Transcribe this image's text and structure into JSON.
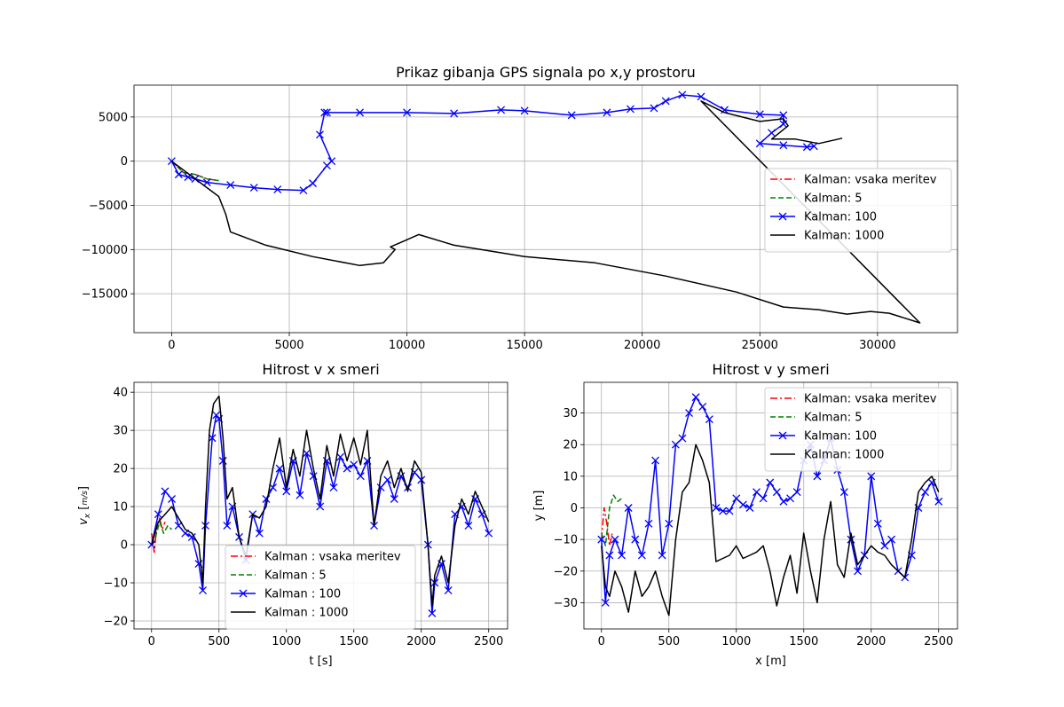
{
  "chart_data": [
    {
      "type": "line",
      "title": "Prikaz gibanja GPS signala po x,y prostoru",
      "xlabel": "",
      "ylabel": "",
      "xlim": [
        -1600,
        33400
      ],
      "ylim": [
        -19400,
        8600
      ],
      "xticks": [
        0,
        5000,
        10000,
        15000,
        20000,
        25000,
        30000
      ],
      "yticks": [
        -15000,
        -10000,
        -5000,
        0,
        5000
      ],
      "grid": true,
      "legend": "right",
      "series": [
        {
          "name": "Kalman: vsaka meritev",
          "color": "#ff0000",
          "style": "dashdot",
          "marker": "none",
          "x": [
            0,
            500,
            1000,
            1500,
            2000
          ],
          "y": [
            0,
            -1300,
            -1500,
            -2000,
            -2200
          ]
        },
        {
          "name": "Kalman: 5",
          "color": "#008000",
          "style": "dashed",
          "marker": "none",
          "x": [
            0,
            500,
            1000,
            1500,
            2000
          ],
          "y": [
            0,
            -1300,
            -1500,
            -2000,
            -2200
          ]
        },
        {
          "name": "Kalman: 100",
          "color": "#0000ff",
          "style": "solid",
          "marker": "x",
          "x": [
            0,
            300,
            700,
            1000,
            1500,
            2500,
            3500,
            4500,
            5600,
            6000,
            6600,
            6800,
            6300,
            6500,
            6600,
            8000,
            10000,
            12000,
            14000,
            15000,
            17000,
            18500,
            19500,
            20500,
            21000,
            21700,
            22500,
            23500,
            25000,
            26000,
            26000,
            25500,
            25000,
            26000,
            27000,
            27300
          ],
          "y": [
            0,
            -1500,
            -1800,
            -2000,
            -2400,
            -2700,
            -3000,
            -3200,
            -3300,
            -2500,
            -500,
            0,
            3000,
            5500,
            5500,
            5500,
            5500,
            5400,
            5800,
            5700,
            5200,
            5500,
            5900,
            6000,
            6800,
            7500,
            7300,
            5800,
            5300,
            5200,
            4200,
            3200,
            2000,
            1800,
            1600,
            1700
          ]
        },
        {
          "name": "Kalman: 1000",
          "color": "#000000",
          "style": "solid",
          "marker": "none",
          "x": [
            0,
            1000,
            2000,
            2300,
            2500,
            4000,
            6000,
            8000,
            9000,
            9500,
            9300,
            9900,
            10500,
            12000,
            15000,
            18000,
            21000,
            24000,
            26000,
            27500,
            28700,
            29700,
            30500,
            31800,
            22500,
            23500,
            25000,
            26000,
            26200,
            25500,
            26500,
            27500,
            28500
          ],
          "y": [
            0,
            -2000,
            -4000,
            -6000,
            -8000,
            -9500,
            -10800,
            -11800,
            -11500,
            -10000,
            -9700,
            -9000,
            -8300,
            -9500,
            -10800,
            -11500,
            -13000,
            -14800,
            -16500,
            -16800,
            -17300,
            -17000,
            -17200,
            -18300,
            6800,
            5500,
            4500,
            4800,
            4000,
            2500,
            2500,
            2000,
            2600
          ]
        }
      ]
    },
    {
      "type": "line",
      "title": "Hitrost v x smeri",
      "xlabel": "t [s]",
      "ylabel": "v_x [m/s]",
      "ylabel_parts": {
        "var": "v",
        "sub": "x",
        "num": "m",
        "den": "s"
      },
      "xlim": [
        -130,
        2640
      ],
      "ylim": [
        -22.1,
        42.6
      ],
      "xticks": [
        0,
        500,
        1000,
        1500,
        2000,
        2500
      ],
      "yticks": [
        -20,
        -10,
        0,
        10,
        20,
        30,
        40
      ],
      "grid": true,
      "legend": "lower center",
      "series": [
        {
          "name": "Kalman : vsaka meritev",
          "color": "#ff0000",
          "style": "dashdot",
          "marker": "none",
          "x": [
            0,
            20,
            40,
            60,
            80,
            100
          ],
          "y": [
            3,
            -2,
            5,
            7,
            4,
            6
          ]
        },
        {
          "name": "Kalman : 5",
          "color": "#008000",
          "style": "dashed",
          "marker": "none",
          "x": [
            0,
            30,
            60,
            90,
            120,
            150
          ],
          "y": [
            0,
            2,
            6,
            3,
            5,
            4
          ]
        },
        {
          "name": "Kalman : 100",
          "color": "#0000ff",
          "style": "solid",
          "marker": "x",
          "x": [
            0,
            50,
            100,
            150,
            200,
            250,
            300,
            350,
            380,
            400,
            450,
            480,
            500,
            530,
            560,
            600,
            650,
            700,
            750,
            800,
            850,
            900,
            950,
            1000,
            1050,
            1100,
            1150,
            1200,
            1250,
            1300,
            1350,
            1400,
            1450,
            1500,
            1550,
            1600,
            1650,
            1700,
            1750,
            1800,
            1850,
            1900,
            1950,
            2000,
            2050,
            2080,
            2100,
            2150,
            2200,
            2250,
            2300,
            2350,
            2400,
            2450,
            2500
          ],
          "y": [
            0,
            8,
            14,
            12,
            5,
            3,
            2,
            -5,
            -12,
            5,
            28,
            34,
            33,
            22,
            5,
            10,
            2,
            -4,
            8,
            3,
            12,
            15,
            20,
            14,
            22,
            13,
            24,
            18,
            10,
            22,
            15,
            23,
            20,
            21,
            18,
            22,
            5,
            15,
            17,
            12,
            18,
            15,
            19,
            17,
            0,
            -18,
            -10,
            -5,
            -12,
            8,
            10,
            5,
            12,
            8,
            3
          ]
        },
        {
          "name": "Kalman : 1000",
          "color": "#000000",
          "style": "solid",
          "marker": "none",
          "x": [
            0,
            50,
            100,
            150,
            200,
            250,
            300,
            350,
            380,
            400,
            430,
            460,
            500,
            530,
            560,
            600,
            650,
            700,
            750,
            800,
            850,
            900,
            950,
            1000,
            1050,
            1100,
            1150,
            1200,
            1250,
            1300,
            1350,
            1400,
            1450,
            1500,
            1550,
            1600,
            1650,
            1700,
            1750,
            1800,
            1850,
            1900,
            1950,
            2000,
            2050,
            2080,
            2100,
            2150,
            2200,
            2250,
            2300,
            2350,
            2400,
            2450,
            2500
          ],
          "y": [
            0,
            6,
            8,
            10,
            7,
            4,
            3,
            0,
            -10,
            10,
            30,
            37,
            39,
            28,
            12,
            15,
            2,
            -3,
            8,
            7,
            10,
            20,
            28,
            15,
            25,
            18,
            30,
            20,
            12,
            26,
            18,
            29,
            22,
            28,
            21,
            30,
            5,
            18,
            22,
            15,
            20,
            14,
            22,
            19,
            0,
            -16,
            -8,
            -3,
            -10,
            5,
            12,
            8,
            14,
            10,
            6
          ]
        }
      ]
    },
    {
      "type": "line",
      "title": "Hitrost v y smeri",
      "xlabel": "x [m]",
      "ylabel": "y [m]",
      "xlim": [
        -130,
        2640
      ],
      "ylim": [
        -38.3,
        39.7
      ],
      "xticks": [
        0,
        500,
        1000,
        1500,
        2000,
        2500
      ],
      "yticks": [
        -30,
        -20,
        -10,
        0,
        10,
        20,
        30
      ],
      "grid": true,
      "legend": "upper right",
      "series": [
        {
          "name": "Kalman: vsaka meritev",
          "color": "#ff0000",
          "style": "dashdot",
          "marker": "none",
          "x": [
            0,
            20,
            40,
            60,
            80
          ],
          "y": [
            -10,
            0,
            -5,
            -12,
            -8
          ]
        },
        {
          "name": "Kalman: 5",
          "color": "#008000",
          "style": "dashed",
          "marker": "none",
          "x": [
            0,
            30,
            60,
            90,
            120,
            150
          ],
          "y": [
            -8,
            -12,
            0,
            4,
            2,
            3
          ]
        },
        {
          "name": "Kalman: 100",
          "color": "#0000ff",
          "style": "solid",
          "marker": "x",
          "x": [
            0,
            30,
            60,
            100,
            150,
            200,
            250,
            300,
            350,
            400,
            450,
            500,
            550,
            600,
            650,
            700,
            750,
            800,
            850,
            900,
            950,
            1000,
            1050,
            1100,
            1150,
            1200,
            1250,
            1300,
            1350,
            1400,
            1450,
            1500,
            1550,
            1600,
            1650,
            1700,
            1750,
            1800,
            1850,
            1900,
            1950,
            2000,
            2050,
            2100,
            2150,
            2200,
            2250,
            2300,
            2350,
            2400,
            2450,
            2500
          ],
          "y": [
            -10,
            -30,
            -15,
            -10,
            -15,
            0,
            -10,
            -15,
            -5,
            15,
            -15,
            -5,
            20,
            22,
            30,
            35,
            32,
            28,
            0,
            -1,
            -1,
            3,
            1,
            0,
            5,
            3,
            8,
            5,
            2,
            3,
            5,
            15,
            20,
            10,
            15,
            22,
            12,
            5,
            -10,
            -20,
            -15,
            10,
            -5,
            -12,
            -10,
            -20,
            -22,
            -15,
            0,
            5,
            8,
            2
          ]
        },
        {
          "name": "Kalman: 1000",
          "color": "#000000",
          "style": "solid",
          "marker": "none",
          "x": [
            0,
            30,
            60,
            100,
            150,
            200,
            250,
            300,
            350,
            400,
            450,
            500,
            550,
            600,
            650,
            700,
            750,
            800,
            850,
            900,
            950,
            1000,
            1050,
            1100,
            1150,
            1200,
            1250,
            1300,
            1350,
            1400,
            1450,
            1500,
            1550,
            1600,
            1650,
            1700,
            1750,
            1800,
            1850,
            1900,
            1950,
            2000,
            2050,
            2100,
            2150,
            2200,
            2250,
            2300,
            2350,
            2400,
            2450,
            2500
          ],
          "y": [
            -12,
            -25,
            -28,
            -20,
            -25,
            -33,
            -20,
            -28,
            -25,
            -20,
            -28,
            -34,
            -10,
            5,
            8,
            20,
            15,
            8,
            -17,
            -16,
            -15,
            -12,
            -16,
            -15,
            -14,
            -12,
            -20,
            -31,
            -22,
            -15,
            -27,
            -8,
            -20,
            -30,
            -10,
            2,
            -18,
            -22,
            -8,
            -18,
            -15,
            -12,
            -14,
            -15,
            -18,
            -20,
            -22,
            -10,
            5,
            8,
            10,
            5
          ]
        }
      ]
    }
  ]
}
